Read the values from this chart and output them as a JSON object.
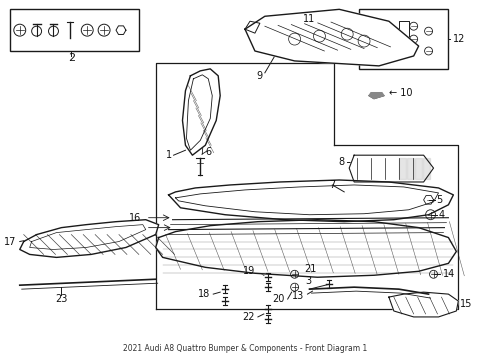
{
  "title": "2021 Audi A8 Quattro Bumper & Components - Front Diagram 1",
  "bg_color": "#ffffff",
  "fig_width": 4.9,
  "fig_height": 3.6,
  "dpi": 100,
  "line_color": "#1a1a1a",
  "text_color": "#111111"
}
